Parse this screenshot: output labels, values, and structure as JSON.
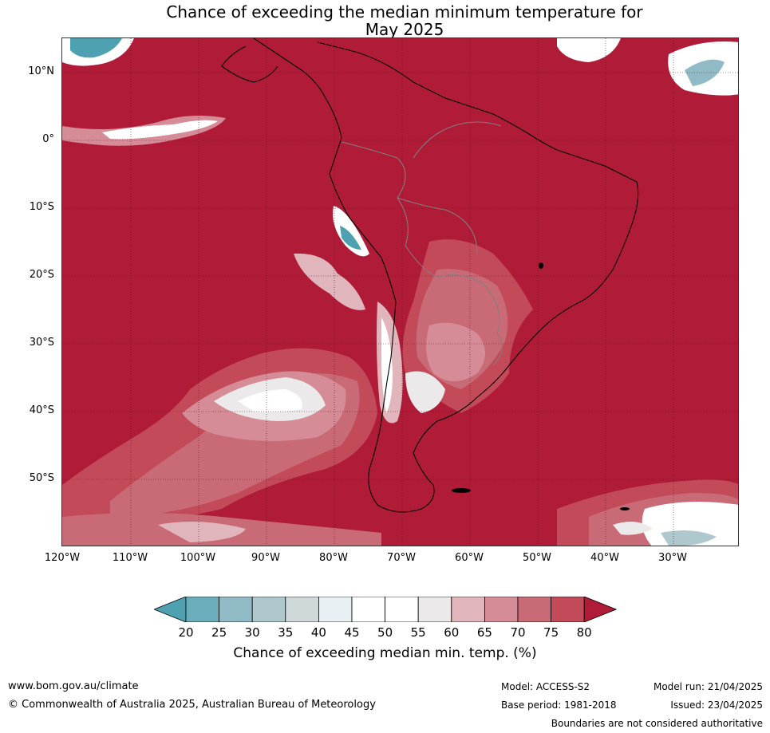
{
  "title_line1": "Chance of exceeding the median minimum temperature for",
  "title_line2": "May 2025",
  "lat_ticks": [
    "10°N",
    "0°",
    "10°S",
    "20°S",
    "30°S",
    "40°S",
    "50°S"
  ],
  "lon_ticks": [
    "120°W",
    "110°W",
    "100°W",
    "90°W",
    "80°W",
    "70°W",
    "60°W",
    "50°W",
    "40°W",
    "30°W"
  ],
  "colorbar": {
    "levels": [
      "20",
      "25",
      "30",
      "35",
      "40",
      "45",
      "50",
      "55",
      "60",
      "65",
      "70",
      "75",
      "80"
    ],
    "colors": [
      "#4da1b0",
      "#6aaebc",
      "#8fbac6",
      "#aec8cd",
      "#d0d9da",
      "#e9f0f3",
      "#ffffff",
      "#ffffff",
      "#ebe9ea",
      "#e0b6bc",
      "#d68c97",
      "#c96b76",
      "#c24a59",
      "#b01c38"
    ],
    "title": "Chance of exceeding median min. temp. (%)"
  },
  "footer": {
    "website": "www.bom.gov.au/climate",
    "copyright": "© Commonwealth of Australia 2025, Australian Bureau of Meteorology",
    "model": "Model: ACCESS-S2",
    "base_period": "Base period: 1981-2018",
    "model_run": "Model run: 21/04/2025",
    "issued": "Issued: 23/04/2025",
    "boundaries_note": "Boundaries are not considered authoritative"
  },
  "map_colors": {
    "high": "#b01c38",
    "p75": "#c24a59",
    "p70": "#c96b76",
    "p65": "#d68c97",
    "p60": "#e0b6bc",
    "neutral": "#ebe9ea",
    "white": "#ffffff",
    "low": "#4da1b0",
    "gridline": "#5a1020",
    "coast": "#000000",
    "border": "#808080"
  }
}
